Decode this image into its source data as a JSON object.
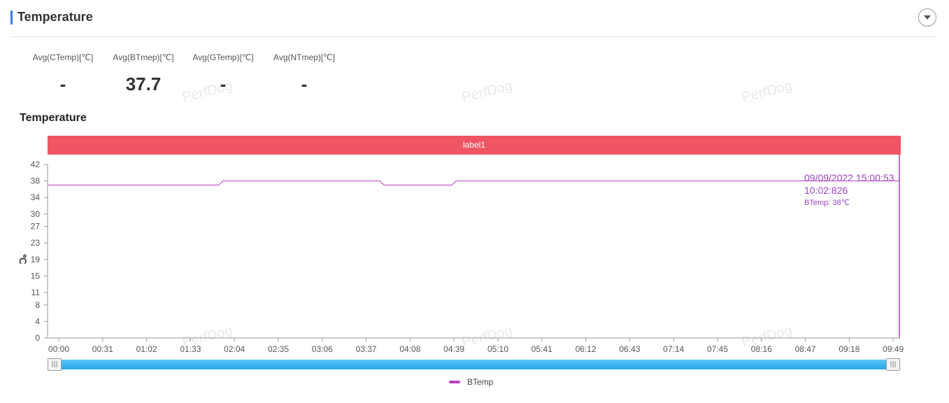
{
  "header": {
    "title": "Temperature",
    "toggle_icon": "chevron-down-icon"
  },
  "stats": [
    {
      "label": "Avg(CTemp)[℃]",
      "value": "-"
    },
    {
      "label": "Avg(BTmep)[℃]",
      "value": "37.7"
    },
    {
      "label": "Avg(GTemp)[℃]",
      "value": "-"
    },
    {
      "label": "Avg(NTmep)[℃]",
      "value": "-"
    }
  ],
  "watermark": "PerfDog",
  "colors": {
    "accent": "#3a7be8",
    "label_band": "#ef5563",
    "series": "#b541c2",
    "cursor": "#9b44c6",
    "slider": "#2aa9ea"
  },
  "chart_data": {
    "type": "line",
    "title": "Temperature",
    "ylabel": "℃",
    "xlabel": "",
    "ylim": [
      0,
      42
    ],
    "y_ticks": [
      "0",
      "4",
      "8",
      "11",
      "15",
      "19",
      "23",
      "27",
      "30",
      "34",
      "38",
      "42"
    ],
    "x_ticks": [
      "00:00",
      "00:31",
      "01:02",
      "01:33",
      "02:04",
      "02:35",
      "03:06",
      "03:37",
      "04:08",
      "04:39",
      "05:10",
      "05:41",
      "06:12",
      "06:43",
      "07:14",
      "07:45",
      "08:16",
      "08:47",
      "09:18",
      "09:49"
    ],
    "x_range_sec": [
      0,
      603
    ],
    "label_band": {
      "text": "label1"
    },
    "series": [
      {
        "name": "BTemp",
        "points": [
          [
            0,
            37
          ],
          [
            121,
            37
          ],
          [
            124,
            38
          ],
          [
            235,
            38
          ],
          [
            238,
            37
          ],
          [
            286,
            37
          ],
          [
            289,
            38
          ],
          [
            603,
            38
          ]
        ]
      }
    ],
    "cursor": {
      "date": "09/09/2022 15:00:53",
      "time": "10:02:826",
      "value_text": "BTemp: 38℃"
    },
    "grid": false,
    "legend_position": "bottom-center"
  }
}
